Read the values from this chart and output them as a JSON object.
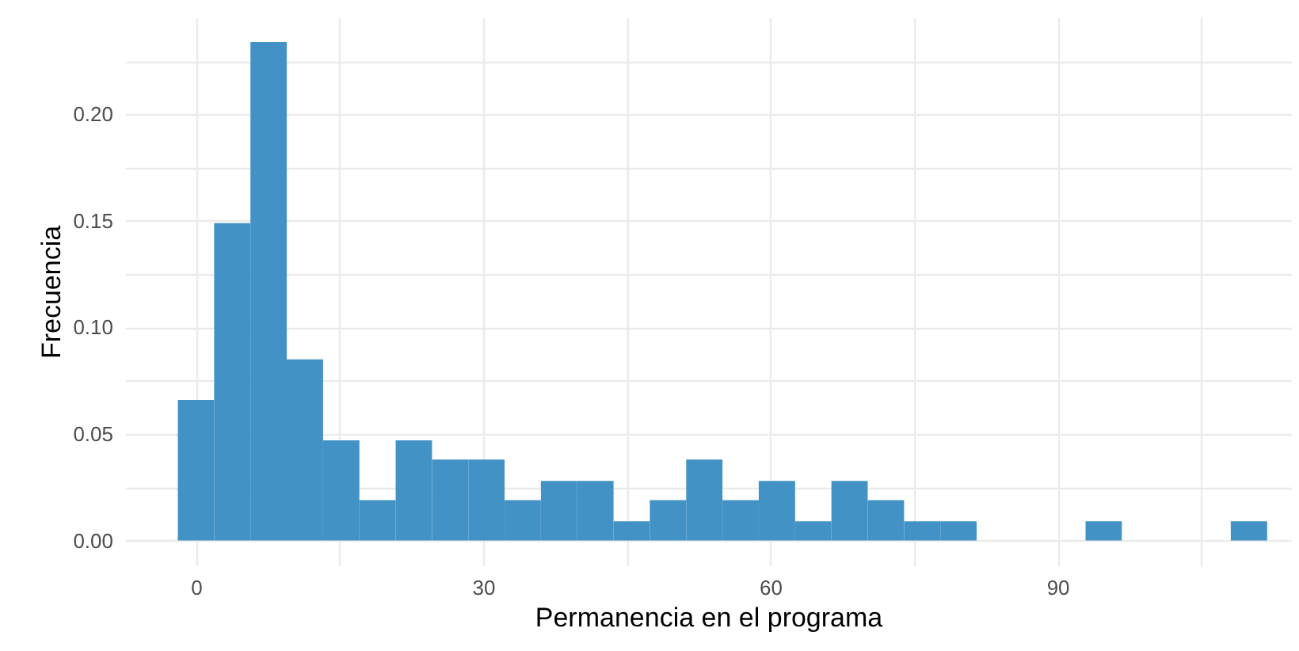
{
  "chart_data": {
    "type": "histogram",
    "xlabel": "Permanencia en el programa",
    "ylabel": "Frecuencia",
    "bins": [
      -1.9,
      1.9,
      5.69,
      9.48,
      13.28,
      17.07,
      20.86,
      24.66,
      28.45,
      32.24,
      36.03,
      39.83,
      43.62,
      47.41,
      51.21,
      55.0,
      58.79,
      62.59,
      66.38,
      70.17,
      73.97,
      77.76,
      81.55,
      85.34,
      89.14,
      92.93,
      96.72,
      100.52,
      104.31,
      108.1,
      111.9
    ],
    "values": [
      0.066,
      0.149,
      0.234,
      0.085,
      0.047,
      0.019,
      0.047,
      0.038,
      0.038,
      0.019,
      0.028,
      0.028,
      0.009,
      0.019,
      0.038,
      0.019,
      0.028,
      0.009,
      0.028,
      0.019,
      0.009,
      0.009,
      0,
      0,
      0,
      0.009,
      0,
      0,
      0,
      0.009
    ],
    "color": "#4292c6",
    "xlim": [
      -7.4,
      114.4
    ],
    "ylim": [
      -0.0117,
      0.2455
    ],
    "xticks": [
      0,
      {
        "value": 15,
        "label": null
      },
      30,
      {
        "value": 45,
        "label": null
      },
      60,
      {
        "value": 75,
        "label": null
      },
      90,
      {
        "value": 105,
        "label": null
      }
    ],
    "yticks": [
      "0.00",
      {
        "value": 0.025,
        "label": null
      },
      {
        "value": 0.05,
        "label": "0.05"
      },
      {
        "value": 0.075,
        "label": null
      },
      {
        "value": 0.1,
        "label": "0.10"
      },
      {
        "value": 0.125,
        "label": null
      },
      {
        "value": 0.15,
        "label": "0.15"
      },
      {
        "value": 0.175,
        "label": null
      },
      {
        "value": 0.2,
        "label": "0.20"
      },
      {
        "value": 0.225,
        "label": null
      }
    ],
    "grid": true
  }
}
